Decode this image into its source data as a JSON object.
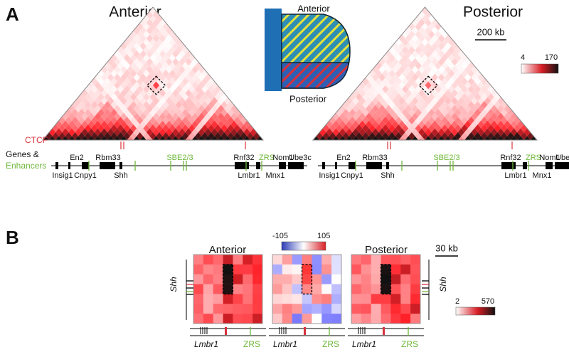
{
  "panel_a": {
    "label": "A",
    "maps": [
      {
        "title": "Anterior"
      },
      {
        "title": "Posterior"
      }
    ],
    "schematic": {
      "top": "Anterior",
      "bottom": "Posterior"
    },
    "scale_bar": "200 kb",
    "colorbar": {
      "min": 4,
      "max": 170
    },
    "tracks": {
      "ctcf": "CTCF",
      "genes_label": "Genes &",
      "enhancers_label": "Enhancers",
      "genes_top": [
        {
          "name": "En2",
          "enhancer": false
        },
        {
          "name": "Rbm33",
          "enhancer": false
        },
        {
          "name": "SBE2/3",
          "enhancer": true
        },
        {
          "name": "Rnf32",
          "enhancer": false
        },
        {
          "name": "ZRS",
          "enhancer": true
        },
        {
          "name": "Nom1",
          "enhancer": false
        },
        {
          "name": "Ube3c",
          "enhancer": false
        }
      ],
      "genes_bottom": [
        "Insig1",
        "Cnpy1",
        "Shh",
        "Lmbr1",
        "Mnx1"
      ]
    }
  },
  "panel_b": {
    "label": "B",
    "maps": [
      {
        "title": "Anterior"
      },
      {
        "title": "Posterior"
      }
    ],
    "diff_colorbar": {
      "min": -105,
      "max": 105
    },
    "scale_bar": "30 kb",
    "side_gene": "Shh",
    "colorbar": {
      "min": 2,
      "max": 570
    },
    "bottom_gene": "Lmbr1",
    "bottom_enhancer": "ZRS"
  }
}
